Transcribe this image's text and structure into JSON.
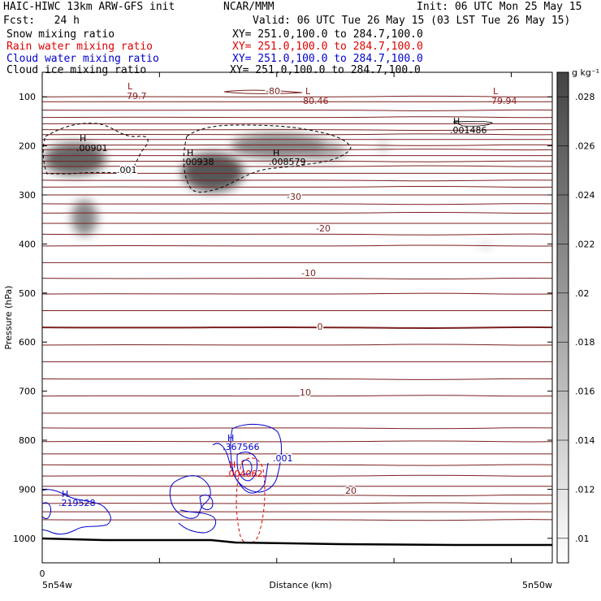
{
  "header": {
    "title_left": "HAIC-HIWC 13km ARW-GFS init",
    "title_center": "NCAR/MMM",
    "init": "Init: 06 UTC Mon 25 May 15",
    "fcst": "Fcst:   24 h",
    "valid": "Valid: 06 UTC Tue 26 May 15 (03 LST Tue 26 May 15)",
    "fields": [
      {
        "name": "Snow mixing ratio",
        "xy": "XY= 251.0,100.0 to 284.7,100.0",
        "color": "#000000"
      },
      {
        "name": "Rain water mixing ratio",
        "xy": "XY= 251.0,100.0 to 284.7,100.0",
        "color": "#dd0000"
      },
      {
        "name": "Cloud water mixing ratio",
        "xy": "XY= 251.0,100.0 to 284.7,100.0",
        "color": "#0000cc"
      },
      {
        "name": "Cloud ice mixing ratio",
        "xy": "XY= 251.0,100.0 to 284.7,100.0",
        "color": "#000000"
      }
    ]
  },
  "chart_data": {
    "type": "heatmap",
    "xlabel": "Distance (km)",
    "ylabel": "Pressure (hPa)",
    "x_origin_label": "0",
    "x_left_label": "5n54w",
    "x_right_label": "5n50w",
    "yticks": [
      100,
      200,
      300,
      400,
      500,
      600,
      700,
      800,
      900,
      1000
    ],
    "ylim": [
      1050,
      50
    ],
    "colorbar": {
      "unit": "g kg⁻¹",
      "ticks": [
        ".028",
        ".026",
        ".024",
        ".022",
        ".02",
        ".018",
        ".016",
        ".014",
        ".012",
        ".01"
      ],
      "range": [
        0.009,
        0.029
      ]
    },
    "contour_labels": [
      {
        "text": "-80",
        "field": "temperature"
      },
      {
        "text": "-30",
        "field": "temperature"
      },
      {
        "text": "-20",
        "field": "temperature"
      },
      {
        "text": "-10",
        "field": "temperature"
      },
      {
        "text": "0",
        "field": "temperature"
      },
      {
        "text": "10",
        "field": "temperature"
      },
      {
        "text": "20",
        "field": "temperature"
      },
      {
        "text": ".001",
        "field": "snow"
      },
      {
        "text": ".001",
        "field": "cloud_water"
      }
    ],
    "extrema": [
      {
        "kind": "L",
        "value": "-79.7",
        "color": "#8b1a1a"
      },
      {
        "kind": "L",
        "value": "-80.46",
        "color": "#8b1a1a"
      },
      {
        "kind": "L",
        "value": "-79.94",
        "color": "#8b1a1a"
      },
      {
        "kind": "H",
        "value": ".00901",
        "color": "#000000"
      },
      {
        "kind": "H",
        "value": ".00938",
        "color": "#000000"
      },
      {
        "kind": "H",
        "value": ".008579",
        "color": "#000000"
      },
      {
        "kind": "H",
        "value": ".001486",
        "color": "#000000"
      },
      {
        "kind": "H",
        "value": ".367566",
        "color": "#0000cc"
      },
      {
        "kind": "H",
        "value": ".219528",
        "color": "#0000cc"
      },
      {
        "kind": "H",
        "value": ".004062",
        "color": "#dd0000"
      }
    ],
    "colors": {
      "temperature": "#7a1f1f",
      "snow": "#000000",
      "rain": "#dd0000",
      "cloud_water": "#0000cc",
      "terrain": "#000000"
    }
  }
}
